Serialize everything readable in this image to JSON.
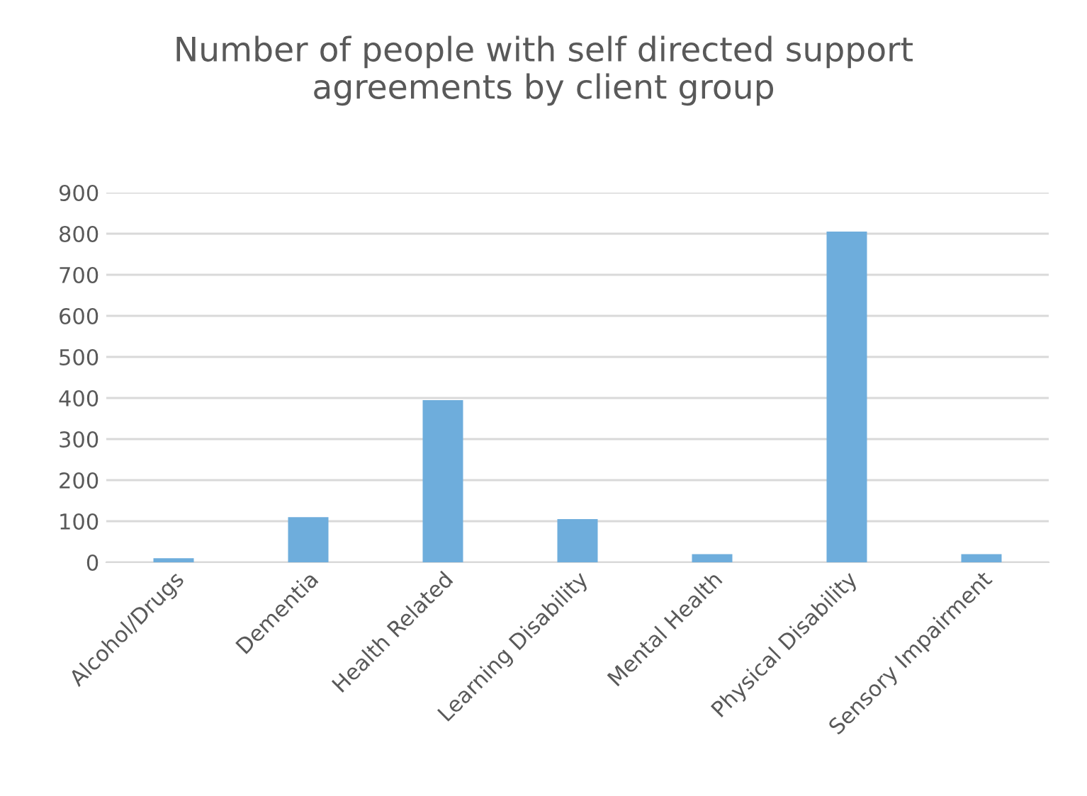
{
  "chart_data": {
    "type": "bar",
    "title": "Number of people with self directed support\nagreements by client group",
    "categories": [
      "Alcohol/Drugs",
      "Dementia",
      "Health Related",
      "Learning Disability",
      "Mental Health",
      "Physical Disability",
      "Sensory Impairment"
    ],
    "values": [
      10,
      110,
      395,
      105,
      20,
      805,
      20
    ],
    "color": "#6eaddc",
    "ylim": [
      0,
      900
    ],
    "yticks": [
      0,
      100,
      200,
      300,
      400,
      500,
      600,
      700,
      800,
      900
    ],
    "grid": "y"
  }
}
